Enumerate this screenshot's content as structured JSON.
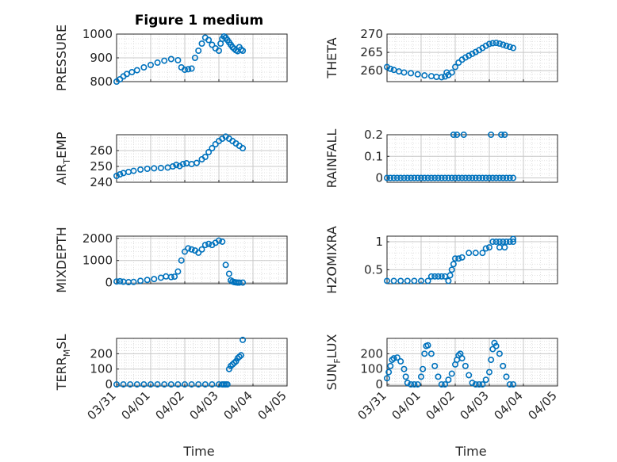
{
  "figure": {
    "title": "Figure 1 medium",
    "xlabel": "Time",
    "xticklabels": [
      "03/31",
      "04/01",
      "04/02",
      "04/03",
      "04/04",
      "04/05"
    ]
  },
  "colors": {
    "marker": "#0072BD",
    "grid": "#d9d9d9",
    "axis": "#262626"
  },
  "chart_data": [
    {
      "type": "scatter",
      "ylabel": "PRESSURE",
      "ylabel_sub": "",
      "ylabel_tail": "",
      "ylim": [
        800,
        1000
      ],
      "yticks": [
        800,
        900,
        1000
      ],
      "show_xticks": false,
      "show_title": true,
      "x": [
        0.0,
        0.1,
        0.2,
        0.3,
        0.45,
        0.6,
        0.8,
        1.0,
        1.2,
        1.4,
        1.6,
        1.8,
        1.9,
        2.0,
        2.1,
        2.2,
        2.3,
        2.4,
        2.5,
        2.6,
        2.7,
        2.8,
        2.9,
        3.0,
        3.05,
        3.1,
        3.15,
        3.2,
        3.25,
        3.3,
        3.35,
        3.4,
        3.45,
        3.5,
        3.55,
        3.6,
        3.65,
        3.7
      ],
      "y": [
        800,
        810,
        822,
        832,
        840,
        848,
        860,
        870,
        880,
        888,
        895,
        890,
        860,
        850,
        852,
        855,
        900,
        930,
        960,
        985,
        975,
        955,
        940,
        930,
        960,
        980,
        990,
        985,
        975,
        965,
        955,
        945,
        938,
        932,
        928,
        945,
        935,
        930
      ]
    },
    {
      "type": "scatter",
      "ylabel": "THETA",
      "ylabel_sub": "",
      "ylabel_tail": "",
      "ylim": [
        257,
        270
      ],
      "yticks": [
        260,
        265,
        270
      ],
      "show_xticks": false,
      "show_title": false,
      "x": [
        0.0,
        0.1,
        0.2,
        0.35,
        0.5,
        0.7,
        0.9,
        1.1,
        1.3,
        1.45,
        1.6,
        1.7,
        1.75,
        1.8,
        1.9,
        2.0,
        2.1,
        2.2,
        2.3,
        2.4,
        2.5,
        2.6,
        2.7,
        2.8,
        2.9,
        3.0,
        3.1,
        3.2,
        3.3,
        3.4,
        3.5,
        3.6,
        3.7
      ],
      "y": [
        261,
        260.5,
        260.2,
        259.8,
        259.5,
        259.3,
        259,
        258.7,
        258.5,
        258.3,
        258.2,
        258.4,
        259.5,
        258.8,
        259.5,
        261,
        262.2,
        263,
        263.6,
        264.1,
        264.6,
        265.1,
        265.6,
        266.2,
        266.8,
        267.3,
        267.5,
        267.6,
        267.4,
        267.1,
        266.8,
        266.5,
        266.2
      ]
    },
    {
      "type": "scatter",
      "ylabel": "AIR",
      "ylabel_sub": "T",
      "ylabel_tail": "EMP",
      "ylim": [
        240,
        270
      ],
      "yticks": [
        240,
        250,
        260
      ],
      "show_xticks": false,
      "show_title": false,
      "x": [
        0.0,
        0.1,
        0.2,
        0.35,
        0.5,
        0.7,
        0.9,
        1.1,
        1.3,
        1.5,
        1.65,
        1.75,
        1.85,
        1.95,
        2.05,
        2.2,
        2.35,
        2.5,
        2.6,
        2.7,
        2.8,
        2.9,
        3.0,
        3.1,
        3.2,
        3.3,
        3.4,
        3.5,
        3.6,
        3.7
      ],
      "y": [
        244,
        245,
        245.8,
        246.5,
        247.2,
        248,
        248.5,
        248.8,
        249,
        249.3,
        250,
        251,
        250.2,
        251.5,
        252,
        251.5,
        252.2,
        254.5,
        256,
        259,
        261.5,
        264,
        266,
        267.5,
        268.8,
        267.5,
        266,
        264.5,
        263,
        261.5
      ]
    },
    {
      "type": "scatter",
      "ylabel": "RAINFALL",
      "ylabel_sub": "",
      "ylabel_tail": "",
      "ylim": [
        -0.02,
        0.2
      ],
      "yticks": [
        0,
        0.1,
        0.2
      ],
      "show_xticks": false,
      "show_title": false,
      "x": [
        0.0,
        0.1,
        0.2,
        0.3,
        0.4,
        0.5,
        0.6,
        0.7,
        0.8,
        0.9,
        1.0,
        1.1,
        1.2,
        1.3,
        1.4,
        1.5,
        1.6,
        1.7,
        1.8,
        1.9,
        2.0,
        2.1,
        2.2,
        2.3,
        2.4,
        2.5,
        2.6,
        2.7,
        2.8,
        2.9,
        3.0,
        3.1,
        3.2,
        3.3,
        3.4,
        3.5,
        3.6,
        3.7,
        1.95,
        2.05,
        2.25,
        3.05,
        3.35,
        3.45
      ],
      "y": [
        0,
        0,
        0,
        0,
        0,
        0,
        0,
        0,
        0,
        0,
        0,
        0,
        0,
        0,
        0,
        0,
        0,
        0,
        0,
        0,
        0,
        0,
        0,
        0,
        0,
        0,
        0,
        0,
        0,
        0,
        0,
        0,
        0,
        0,
        0,
        0,
        0,
        0,
        0.2,
        0.2,
        0.2,
        0.2,
        0.2,
        0.2
      ]
    },
    {
      "type": "scatter",
      "ylabel": "MIXDEPTH",
      "ylabel_sub": "",
      "ylabel_tail": "",
      "ylim": [
        -50,
        2100
      ],
      "yticks": [
        0,
        1000,
        2000
      ],
      "show_xticks": false,
      "show_title": false,
      "x": [
        0.0,
        0.1,
        0.2,
        0.35,
        0.5,
        0.7,
        0.9,
        1.1,
        1.3,
        1.45,
        1.6,
        1.7,
        1.8,
        1.9,
        2.0,
        2.1,
        2.2,
        2.3,
        2.4,
        2.5,
        2.6,
        2.7,
        2.8,
        2.9,
        3.0,
        3.1,
        3.2,
        3.3,
        3.35,
        3.4,
        3.45,
        3.5,
        3.55,
        3.6,
        3.7
      ],
      "y": [
        50,
        60,
        40,
        20,
        30,
        80,
        120,
        160,
        220,
        280,
        250,
        270,
        500,
        1000,
        1400,
        1550,
        1500,
        1450,
        1350,
        1500,
        1700,
        1750,
        1700,
        1800,
        1900,
        1850,
        800,
        400,
        100,
        50,
        20,
        10,
        0,
        0,
        0
      ]
    },
    {
      "type": "scatter",
      "ylabel": "H2OMIXRA",
      "ylabel_sub": "",
      "ylabel_tail": "",
      "ylim": [
        0.25,
        1.1
      ],
      "yticks": [
        0.5,
        1
      ],
      "show_xticks": false,
      "show_title": false,
      "x": [
        0.0,
        0.2,
        0.4,
        0.6,
        0.8,
        1.0,
        1.2,
        1.3,
        1.4,
        1.5,
        1.6,
        1.7,
        1.8,
        1.85,
        1.9,
        1.95,
        2.0,
        2.1,
        2.2,
        2.4,
        2.6,
        2.8,
        2.9,
        3.0,
        3.1,
        3.2,
        3.3,
        3.4,
        3.5,
        3.6,
        3.7,
        3.3,
        3.45,
        3.7
      ],
      "y": [
        0.3,
        0.3,
        0.3,
        0.3,
        0.3,
        0.3,
        0.3,
        0.38,
        0.38,
        0.38,
        0.38,
        0.38,
        0.3,
        0.4,
        0.5,
        0.6,
        0.7,
        0.7,
        0.72,
        0.8,
        0.8,
        0.8,
        0.88,
        0.9,
        1.0,
        1.0,
        1.0,
        1.0,
        1.0,
        1.0,
        1.0,
        0.9,
        0.9,
        1.05
      ]
    },
    {
      "type": "scatter",
      "ylabel": "TERR",
      "ylabel_sub": "M",
      "ylabel_tail": "SL",
      "ylim": [
        -10,
        300
      ],
      "yticks": [
        0,
        100,
        200
      ],
      "show_xticks": true,
      "show_title": false,
      "x": [
        0.0,
        0.2,
        0.4,
        0.6,
        0.8,
        1.0,
        1.2,
        1.4,
        1.6,
        1.8,
        2.0,
        2.2,
        2.4,
        2.6,
        2.8,
        3.0,
        3.1,
        3.15,
        3.2,
        3.25,
        3.3,
        3.35,
        3.4,
        3.45,
        3.5,
        3.55,
        3.6,
        3.65,
        3.7
      ],
      "y": [
        0,
        0,
        0,
        0,
        0,
        0,
        0,
        0,
        0,
        0,
        0,
        0,
        0,
        0,
        0,
        0,
        0,
        0,
        0,
        0,
        100,
        120,
        130,
        140,
        150,
        170,
        180,
        190,
        290
      ]
    },
    {
      "type": "scatter",
      "ylabel": "SUN",
      "ylabel_sub": "F",
      "ylabel_tail": "LUX",
      "ylim": [
        -10,
        300
      ],
      "yticks": [
        0,
        100,
        200
      ],
      "show_xticks": true,
      "show_title": false,
      "x": [
        0.0,
        0.05,
        0.1,
        0.15,
        0.2,
        0.3,
        0.4,
        0.5,
        0.55,
        0.6,
        0.7,
        0.8,
        0.9,
        1.0,
        1.05,
        1.1,
        1.15,
        1.2,
        1.3,
        1.4,
        1.5,
        1.6,
        1.7,
        1.8,
        1.9,
        2.0,
        2.05,
        2.1,
        2.15,
        2.2,
        2.3,
        2.4,
        2.5,
        2.6,
        2.7,
        2.8,
        2.9,
        3.0,
        3.05,
        3.1,
        3.15,
        3.2,
        3.3,
        3.4,
        3.5,
        3.6,
        3.7
      ],
      "y": [
        40,
        80,
        120,
        160,
        170,
        175,
        150,
        100,
        50,
        10,
        0,
        0,
        0,
        50,
        100,
        200,
        250,
        255,
        200,
        120,
        50,
        0,
        0,
        30,
        70,
        130,
        160,
        190,
        200,
        170,
        120,
        60,
        10,
        0,
        0,
        0,
        30,
        80,
        160,
        230,
        270,
        250,
        200,
        120,
        50,
        0,
        0
      ]
    }
  ]
}
